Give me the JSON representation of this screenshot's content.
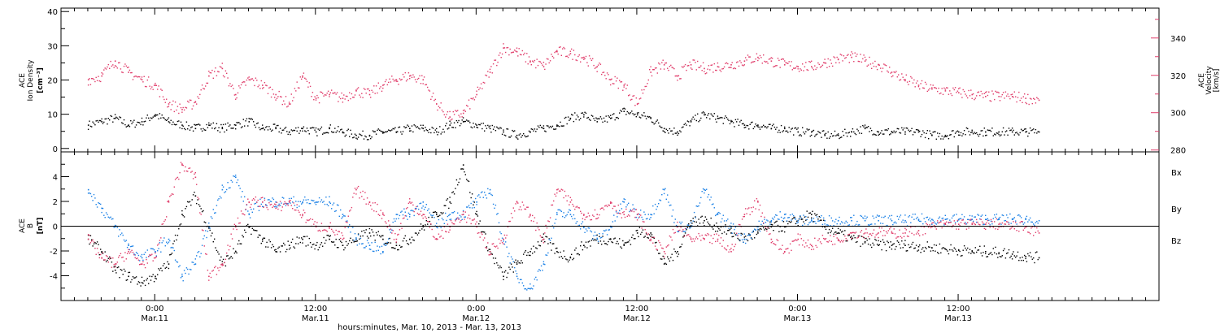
{
  "chart_data": [
    {
      "type": "scatter",
      "panel": "top",
      "left_axis": {
        "label_lines": [
          "ACE",
          "Ion Density",
          "[cm⁻³]"
        ],
        "ylim": [
          -1,
          41
        ],
        "ticks": [
          0,
          10,
          20,
          30,
          40
        ],
        "tick_labels": [
          "0",
          "10",
          "20",
          "30",
          "40"
        ],
        "color": "#000000"
      },
      "right_axis": {
        "label_lines": [
          "ACE",
          "Velocity",
          "[km/s]"
        ],
        "ylim": [
          279,
          356
        ],
        "ticks": [
          280,
          300,
          320,
          340
        ],
        "tick_labels": [
          "280",
          "300",
          "320",
          "340"
        ],
        "color": "#e03c6a"
      },
      "series": [
        {
          "axis": "left",
          "color": "#000000",
          "x_hours": [
            -5,
            -4,
            -3,
            -2,
            -1,
            0,
            1,
            2,
            3,
            4,
            5,
            6,
            7,
            8,
            9,
            10,
            11,
            12,
            13,
            14,
            15,
            16,
            17,
            18,
            19,
            20,
            21,
            22,
            23,
            24,
            25,
            26,
            27,
            28,
            29,
            30,
            31,
            32,
            33,
            34,
            35,
            36,
            37,
            38,
            39,
            40,
            41,
            42,
            43,
            44,
            45,
            46,
            47,
            48,
            49,
            50,
            51,
            52,
            53,
            54,
            55,
            56,
            57,
            58,
            59,
            60,
            61,
            62,
            63,
            64,
            65,
            66
          ],
          "values": [
            7,
            8,
            9,
            7,
            8,
            10,
            8,
            7,
            6,
            7,
            6,
            7,
            8,
            6,
            6,
            5,
            6,
            5,
            6,
            5,
            4,
            4,
            5,
            5,
            6,
            6,
            5,
            7,
            8,
            7,
            6,
            5,
            4,
            5,
            6,
            7,
            9,
            10,
            8,
            9,
            11,
            10,
            9,
            6,
            5,
            8,
            10,
            9,
            8,
            7,
            7,
            6,
            6,
            5,
            5,
            4,
            4,
            5,
            6,
            5,
            5,
            5,
            5,
            4,
            4,
            5,
            5,
            5,
            5,
            5,
            5,
            5
          ]
        },
        {
          "axis": "right",
          "color": "#e03c6a",
          "x_hours": [
            -5,
            -4,
            -3,
            -2,
            -1,
            0,
            1,
            2,
            3,
            4,
            5,
            6,
            7,
            8,
            9,
            10,
            11,
            12,
            13,
            14,
            15,
            16,
            17,
            18,
            19,
            20,
            21,
            22,
            23,
            24,
            25,
            26,
            27,
            28,
            29,
            30,
            31,
            32,
            33,
            34,
            35,
            36,
            37,
            38,
            39,
            40,
            41,
            42,
            43,
            44,
            45,
            46,
            47,
            48,
            49,
            50,
            51,
            52,
            53,
            54,
            55,
            56,
            57,
            58,
            59,
            60,
            61,
            62,
            63,
            64,
            65,
            66
          ],
          "values": [
            318,
            320,
            328,
            322,
            318,
            315,
            305,
            302,
            306,
            320,
            324,
            310,
            318,
            315,
            310,
            305,
            320,
            308,
            310,
            308,
            312,
            310,
            315,
            318,
            320,
            318,
            305,
            298,
            300,
            310,
            322,
            335,
            333,
            328,
            325,
            333,
            332,
            330,
            325,
            318,
            315,
            305,
            322,
            326,
            320,
            326,
            324,
            325,
            326,
            328,
            330,
            328,
            326,
            325,
            325,
            327,
            329,
            330,
            328,
            326,
            322,
            318,
            315,
            313,
            312,
            311,
            310,
            309,
            309,
            309,
            308,
            307
          ]
        }
      ]
    },
    {
      "type": "scatter",
      "panel": "bottom",
      "left_axis": {
        "label_lines": [
          "ACE",
          "B",
          "[nT]"
        ],
        "ylim": [
          -6,
          6
        ],
        "ticks": [
          -4,
          -2,
          0,
          2,
          4
        ],
        "tick_labels": [
          "-4",
          "-2",
          "0",
          "2",
          "4"
        ]
      },
      "zero_line": true,
      "legend": [
        "Bx",
        "By",
        "Bz"
      ],
      "series": [
        {
          "name": "Bx",
          "color": "#000000",
          "x_hours": [
            -5,
            -4,
            -3,
            -2,
            -1,
            0,
            1,
            2,
            3,
            4,
            5,
            6,
            7,
            8,
            9,
            10,
            11,
            12,
            13,
            14,
            15,
            16,
            17,
            18,
            19,
            20,
            21,
            22,
            23,
            24,
            25,
            26,
            27,
            28,
            29,
            30,
            31,
            32,
            33,
            34,
            35,
            36,
            37,
            38,
            39,
            40,
            41,
            42,
            43,
            44,
            45,
            46,
            47,
            48,
            49,
            50,
            51,
            52,
            53,
            54,
            55,
            56,
            57,
            58,
            59,
            60,
            61,
            62,
            63,
            64,
            65,
            66
          ],
          "values": [
            -1,
            -2,
            -3.5,
            -4,
            -4.5,
            -4,
            -3,
            1,
            2.5,
            0,
            -3,
            -2,
            0,
            -1,
            -2,
            -1.5,
            -1,
            -1.5,
            -1,
            -1.5,
            -1,
            -0.5,
            -1,
            -1.5,
            -1,
            0,
            1,
            2,
            5,
            1,
            -2,
            -4,
            -3,
            -2,
            -1,
            -2,
            -2.5,
            -1.5,
            -1,
            -1,
            -1.5,
            -0.5,
            -0.5,
            -3,
            -2,
            0.5,
            0.5,
            0,
            -0.5,
            -1,
            -0.5,
            0,
            0,
            0.5,
            1,
            0,
            -0.5,
            -1,
            -1.2,
            -1.5,
            -1.5,
            -1.5,
            -1.6,
            -1.7,
            -1.8,
            -1.9,
            -2,
            -2,
            -2.1,
            -2.2,
            -2.4,
            -2.5
          ]
        },
        {
          "name": "By",
          "color": "#1a80e6",
          "x_hours": [
            -5,
            -4,
            -3,
            -2,
            -1,
            0,
            1,
            2,
            3,
            4,
            5,
            6,
            7,
            8,
            9,
            10,
            11,
            12,
            13,
            14,
            15,
            16,
            17,
            18,
            19,
            20,
            21,
            22,
            23,
            24,
            25,
            26,
            27,
            28,
            29,
            30,
            31,
            32,
            33,
            34,
            35,
            36,
            37,
            38,
            39,
            40,
            41,
            42,
            43,
            44,
            45,
            46,
            47,
            48,
            49,
            50,
            51,
            52,
            53,
            54,
            55,
            56,
            57,
            58,
            59,
            60,
            61,
            62,
            63,
            64,
            65,
            66
          ],
          "values": [
            3,
            1.5,
            0,
            -1.5,
            -2.5,
            -2,
            -1,
            -4,
            -3,
            0,
            3,
            4,
            1,
            2,
            2,
            2,
            2,
            2,
            2,
            1,
            -1,
            -1.5,
            -2,
            1,
            1,
            2,
            0,
            1,
            1,
            2,
            3,
            -1,
            -4,
            -5,
            -3,
            1,
            1,
            0,
            -1,
            0,
            2,
            1,
            1,
            3,
            0,
            0,
            3,
            1,
            0,
            -1,
            0,
            0.5,
            1,
            0.5,
            0.5,
            0.5,
            0.5,
            0.5,
            0.5,
            0.5,
            0.5,
            0.5,
            0.6,
            0.6,
            0.6,
            0.6,
            0.6,
            0.6,
            0.6,
            0.6,
            0.6,
            0.5
          ]
        },
        {
          "name": "Bz",
          "color": "#e03c6a",
          "x_hours": [
            -5,
            -4,
            -3,
            -2,
            -1,
            0,
            1,
            2,
            3,
            4,
            5,
            6,
            7,
            8,
            9,
            10,
            11,
            12,
            13,
            14,
            15,
            16,
            17,
            18,
            19,
            20,
            21,
            22,
            23,
            24,
            25,
            26,
            27,
            28,
            29,
            30,
            31,
            32,
            33,
            34,
            35,
            36,
            37,
            38,
            39,
            40,
            41,
            42,
            43,
            44,
            45,
            46,
            47,
            48,
            49,
            50,
            51,
            52,
            53,
            54,
            55,
            56,
            57,
            58,
            59,
            60,
            61,
            62,
            63,
            64,
            65,
            66
          ],
          "values": [
            -1,
            -2.5,
            -3,
            -2,
            -3,
            -2.5,
            2,
            5,
            4,
            -4,
            -3,
            0,
            2,
            2,
            1.5,
            2,
            1,
            0,
            0,
            -1,
            3,
            2,
            1,
            -1,
            2,
            1,
            -1,
            0,
            1,
            0,
            -2,
            -1,
            2,
            1,
            -1,
            3,
            2,
            1,
            1,
            2,
            1,
            1,
            -1,
            -2,
            0,
            -1,
            -1,
            -1,
            -2,
            1,
            2,
            -1,
            -2,
            -1,
            -1.5,
            -1,
            -1,
            -0.5,
            -0.5,
            -0.5,
            -0.5,
            -0.5,
            -0.3,
            0,
            0.2,
            0.2,
            0.2,
            0.2,
            0.2,
            0,
            0,
            -0.5
          ]
        }
      ]
    }
  ],
  "x_axis": {
    "xlim_hours": [
      -7,
      75
    ],
    "ticks_hours": [
      0,
      12,
      24,
      36,
      48,
      60
    ],
    "tick_time_labels": [
      "0:00",
      "12:00",
      "0:00",
      "12:00",
      "0:00",
      "12:00"
    ],
    "tick_date_labels": [
      "Mar.11",
      "Mar.11",
      "Mar.12",
      "Mar.12",
      "Mar.13",
      "Mar.13"
    ],
    "minor_tick_step_hours": 1,
    "title": "hours:minutes, Mar. 10, 2013 - Mar. 13, 2013"
  }
}
